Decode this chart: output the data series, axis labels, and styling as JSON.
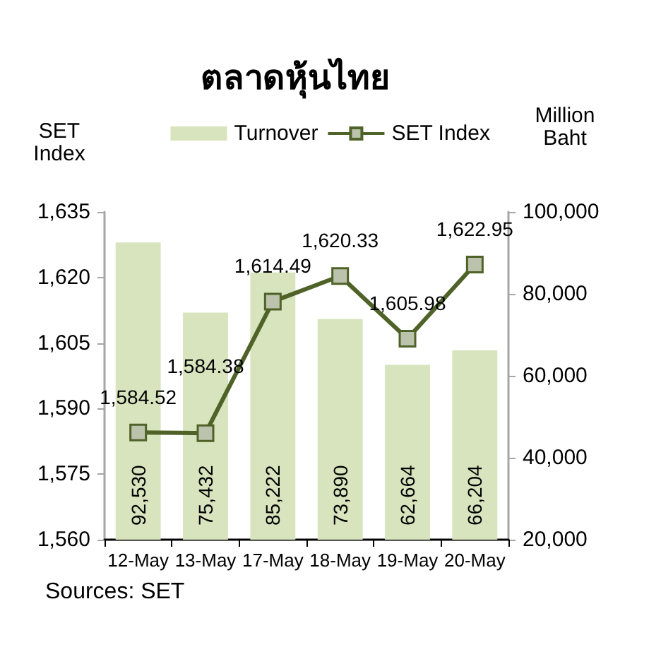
{
  "chart_data": {
    "type": "bar",
    "title": "ตลาดหุ้นไทย",
    "ylabel": "SET Index",
    "y2label": "Million Baht",
    "annotations": [
      "Sources: SET"
    ],
    "categories": [
      "12-May",
      "13-May",
      "17-May",
      "18-May",
      "19-May",
      "20-May"
    ],
    "series": [
      {
        "name": "Turnover",
        "axis": "y2",
        "color": "#d7e4bd",
        "values": [
          92530,
          75432,
          85222,
          73890,
          62664,
          66204
        ],
        "value_labels": [
          "92,530",
          "75,432",
          "85,222",
          "73,890",
          "62,664",
          "66,204"
        ]
      },
      {
        "name": "SET Index",
        "type": "line",
        "color": "#4f6228",
        "values": [
          1584.52,
          1584.38,
          1614.49,
          1620.33,
          1605.98,
          1622.95
        ],
        "value_labels": [
          "1,584.52",
          "1,584.38",
          "1,614.49",
          "1,620.33",
          "1,605.98",
          "1,622.95"
        ]
      }
    ],
    "ylim": [
      1560,
      1635
    ],
    "yticks": [
      {
        "value": 1560,
        "label": "1,560"
      },
      {
        "value": 1575,
        "label": "1,575"
      },
      {
        "value": 1590,
        "label": "1,590"
      },
      {
        "value": 1605,
        "label": "1,605"
      },
      {
        "value": 1620,
        "label": "1,620"
      },
      {
        "value": 1635,
        "label": "1,635"
      }
    ],
    "y2lim": [
      20000,
      100000
    ],
    "y2ticks": [
      {
        "value": 20000,
        "label": "20,000"
      },
      {
        "value": 40000,
        "label": "40,000"
      },
      {
        "value": 60000,
        "label": "60,000"
      },
      {
        "value": 80000,
        "label": "80,000"
      },
      {
        "value": 100000,
        "label": "100,000"
      }
    ],
    "legend": "top",
    "grid": false,
    "marker": "square"
  }
}
